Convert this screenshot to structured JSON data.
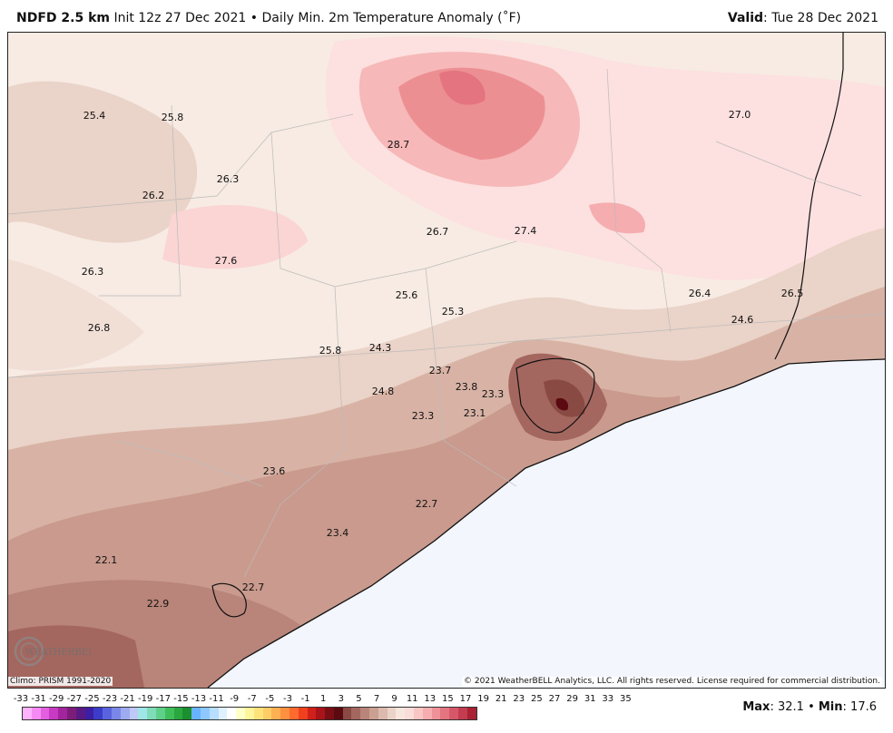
{
  "header": {
    "model": "NDFD 2.5 km",
    "init": "Init 12z 27 Dec 2021",
    "bullet": "•",
    "product": "Daily Min. 2m Temperature Anomaly (˚F)",
    "valid_label": "Valid",
    "valid_value": ": Tue 28 Dec 2021"
  },
  "map_values": [
    {
      "text": "25.4"
    },
    {
      "text": "25.8"
    },
    {
      "text": "28.7"
    },
    {
      "text": "27.0"
    },
    {
      "text": "26.3"
    },
    {
      "text": "26.2"
    },
    {
      "text": "26.7"
    },
    {
      "text": "27.4"
    },
    {
      "text": "26.3"
    },
    {
      "text": "27.6"
    },
    {
      "text": "25.6"
    },
    {
      "text": "26.4"
    },
    {
      "text": "26.5"
    },
    {
      "text": "25.3"
    },
    {
      "text": "24.6"
    },
    {
      "text": "26.8"
    },
    {
      "text": "25.8"
    },
    {
      "text": "24.3"
    },
    {
      "text": "23.7"
    },
    {
      "text": "23.8"
    },
    {
      "text": "24.8"
    },
    {
      "text": "23.3"
    },
    {
      "text": "23.3"
    },
    {
      "text": "23.1"
    },
    {
      "text": "23.6"
    },
    {
      "text": "22.7"
    },
    {
      "text": "23.4"
    },
    {
      "text": "22.1"
    },
    {
      "text": "22.7"
    },
    {
      "text": "22.9"
    }
  ],
  "footer": {
    "climo": "Climo: PRISM 1991-2020",
    "copyright": "© 2021 WeatherBELL Analytics, LLC. All rights reserved. License required for commercial distribution."
  },
  "logo_text": "WEATHERBELL",
  "legend": {
    "ticks": [
      "-33",
      "-31",
      "-29",
      "-27",
      "-25",
      "-23",
      "-21",
      "-19",
      "-17",
      "-15",
      "-13",
      "-11",
      "-9",
      "-7",
      "-5",
      "-3",
      "-1",
      "1",
      "3",
      "5",
      "7",
      "9",
      "11",
      "13",
      "15",
      "17",
      "19",
      "21",
      "23",
      "25",
      "27",
      "29",
      "31",
      "33",
      "35"
    ],
    "colors": [
      "#ffb3ff",
      "#f58af5",
      "#e35fe0",
      "#c93ac4",
      "#a3259d",
      "#7d1d7a",
      "#5a1a85",
      "#3c1fa6",
      "#3b3cc9",
      "#5a63de",
      "#7b87e8",
      "#9fabf0",
      "#bfc8f7",
      "#9fe6e6",
      "#7fdcb8",
      "#5fd08a",
      "#3fbf5a",
      "#2aa83f",
      "#1c8f2e",
      "#67b3ff",
      "#8fc8ff",
      "#b7ddff",
      "#dff0ff",
      "#ffffff",
      "#ffffc8",
      "#fff59a",
      "#ffe37a",
      "#ffcc66",
      "#ffb052",
      "#ff9040",
      "#ff6a2e",
      "#f0401e",
      "#d0201a",
      "#a8141a",
      "#7a0e14",
      "#5a0a10",
      "#8a4a44",
      "#a4675f",
      "#b98479",
      "#cc9f93",
      "#dcbaae",
      "#ead3c8",
      "#f6e6dd",
      "#fadcd8",
      "#f9c6c4",
      "#f5adb0",
      "#ee9199",
      "#e47480",
      "#d65868",
      "#c33c4f",
      "#a82233"
    ]
  },
  "stats": {
    "max_label": "Max",
    "max_value": ": 32.1",
    "sep": "•",
    "min_label": "Min",
    "min_value": ": 17.6"
  },
  "palette": {
    "land_light": "#f7ebe3",
    "pink_light": "#fde0e0",
    "pink_mid": "#f6b8b8",
    "pink_strong": "#ec8f93",
    "tan_light": "#ead3c8",
    "tan_mid": "#d8b3a5",
    "tan_dark": "#b98479",
    "brown_dark": "#8a4a44",
    "maroon": "#5a0a10",
    "water": "#f3f6fd"
  }
}
